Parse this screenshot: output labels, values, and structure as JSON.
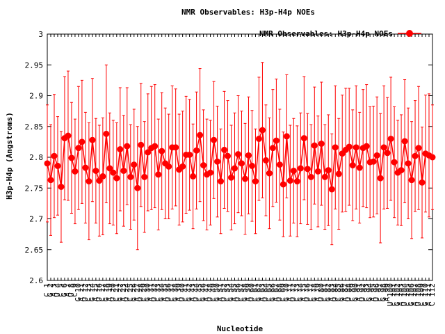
{
  "chart_data": {
    "type": "errorbar-line",
    "title": "NMR Observables: H3p-H4p NOEs",
    "xlabel": "Nucleotide",
    "ylabel": "H3p-H4p (Angstroms)",
    "legend": "top-right",
    "categories": [
      "C 1",
      "G 2",
      "A 3",
      "U 4",
      "C 5",
      "G 6",
      "A 7",
      "U 8",
      "C 9",
      "G 10",
      "A 11",
      "U 12",
      "C 13",
      "G 14",
      "A 15",
      "U 16",
      "C 17",
      "G 18",
      "A 19",
      "U 20",
      "C 21",
      "G 22",
      "A 23",
      "U 24",
      "C 25",
      "G 26",
      "A 27",
      "U 28",
      "C 29",
      "G 30",
      "A 31",
      "U 32",
      "C 33",
      "G 34",
      "A 35",
      "U 36",
      "C 37",
      "G 38",
      "A 39",
      "U 40",
      "C 41",
      "G 42",
      "A 43",
      "U 44",
      "C 45",
      "G 46",
      "A 47",
      "U 48",
      "C 49",
      "G 50",
      "A 51",
      "U 52",
      "C 53",
      "G 54",
      "A 55",
      "U 56",
      "C 57",
      "G 58",
      "A 59",
      "U 60",
      "C 61",
      "G 62",
      "A 63",
      "U 64",
      "C 65",
      "G 66",
      "A 67",
      "U 68",
      "C 69",
      "G 70",
      "A 71",
      "U 72",
      "C 73",
      "G 74",
      "A 75",
      "U 76",
      "C 77",
      "G 78",
      "A 79",
      "U 80",
      "C 81",
      "G 82",
      "A 83",
      "U 84",
      "C 85",
      "G 86",
      "A 87",
      "U 88",
      "C 89",
      "G 90",
      "A 91",
      "U 92",
      "C 93",
      "G 94",
      "A 95",
      "U 96",
      "C 97",
      "G 98",
      "A 99",
      "U 100",
      "C 101",
      "G 102",
      "A 103",
      "U 104",
      "C 105",
      "G 106",
      "A 107",
      "U 108",
      "C 109",
      "G 110",
      "A 111",
      "C 112"
    ],
    "series": [
      {
        "name": "NMR Observables: H3p-H4p NOEs",
        "color": "#ff0000",
        "values": [
          2.79,
          2.763,
          2.802,
          2.786,
          2.752,
          2.831,
          2.835,
          2.799,
          2.777,
          2.815,
          2.825,
          2.783,
          2.761,
          2.828,
          2.778,
          2.762,
          2.769,
          2.838,
          2.782,
          2.775,
          2.766,
          2.813,
          2.778,
          2.818,
          2.768,
          2.788,
          2.75,
          2.82,
          2.768,
          2.808,
          2.815,
          2.818,
          2.772,
          2.81,
          2.79,
          2.785,
          2.816,
          2.816,
          2.78,
          2.785,
          2.804,
          2.804,
          2.769,
          2.811,
          2.836,
          2.787,
          2.772,
          2.775,
          2.828,
          2.793,
          2.761,
          2.812,
          2.802,
          2.767,
          2.782,
          2.805,
          2.79,
          2.765,
          2.803,
          2.786,
          2.761,
          2.83,
          2.844,
          2.795,
          2.774,
          2.815,
          2.827,
          2.788,
          2.756,
          2.834,
          2.762,
          2.778,
          2.761,
          2.782,
          2.831,
          2.781,
          2.768,
          2.819,
          2.777,
          2.822,
          2.768,
          2.779,
          2.748,
          2.816,
          2.773,
          2.806,
          2.812,
          2.817,
          2.787,
          2.816,
          2.783,
          2.815,
          2.818,
          2.792,
          2.793,
          2.803,
          2.766,
          2.816,
          2.807,
          2.83,
          2.792,
          2.775,
          2.779,
          2.826,
          2.79,
          2.763,
          2.802,
          2.815,
          2.759,
          2.806,
          2.803,
          2.8
        ],
        "errors": [
          0.095,
          0.09,
          0.1,
          0.08,
          0.09,
          0.1,
          0.105,
          0.09,
          0.085,
          0.1,
          0.1,
          0.09,
          0.095,
          0.1,
          0.085,
          0.09,
          0.095,
          0.112,
          0.09,
          0.085,
          0.09,
          0.1,
          0.09,
          0.095,
          0.085,
          0.09,
          0.1,
          0.1,
          0.09,
          0.095,
          0.1,
          0.1,
          0.09,
          0.095,
          0.09,
          0.085,
          0.1,
          0.095,
          0.09,
          0.09,
          0.095,
          0.09,
          0.085,
          0.095,
          0.108,
          0.09,
          0.09,
          0.085,
          0.095,
          0.09,
          0.085,
          0.095,
          0.09,
          0.085,
          0.09,
          0.095,
          0.085,
          0.09,
          0.095,
          0.09,
          0.085,
          0.1,
          0.11,
          0.09,
          0.09,
          0.095,
          0.1,
          0.09,
          0.085,
          0.1,
          0.09,
          0.085,
          0.09,
          0.09,
          0.1,
          0.09,
          0.085,
          0.095,
          0.09,
          0.1,
          0.085,
          0.09,
          0.09,
          0.1,
          0.09,
          0.095,
          0.1,
          0.095,
          0.09,
          0.1,
          0.09,
          0.095,
          0.1,
          0.09,
          0.09,
          0.095,
          0.105,
          0.1,
          0.09,
          0.1,
          0.09,
          0.085,
          0.09,
          0.1,
          0.09,
          0.095,
          0.09,
          0.1,
          0.09,
          0.095,
          0.1,
          0.085
        ]
      }
    ],
    "ylim": [
      2.6,
      3
    ],
    "yticks": [
      2.6,
      2.65,
      2.7,
      2.75,
      2.8,
      2.85,
      2.9,
      2.95,
      3
    ]
  }
}
